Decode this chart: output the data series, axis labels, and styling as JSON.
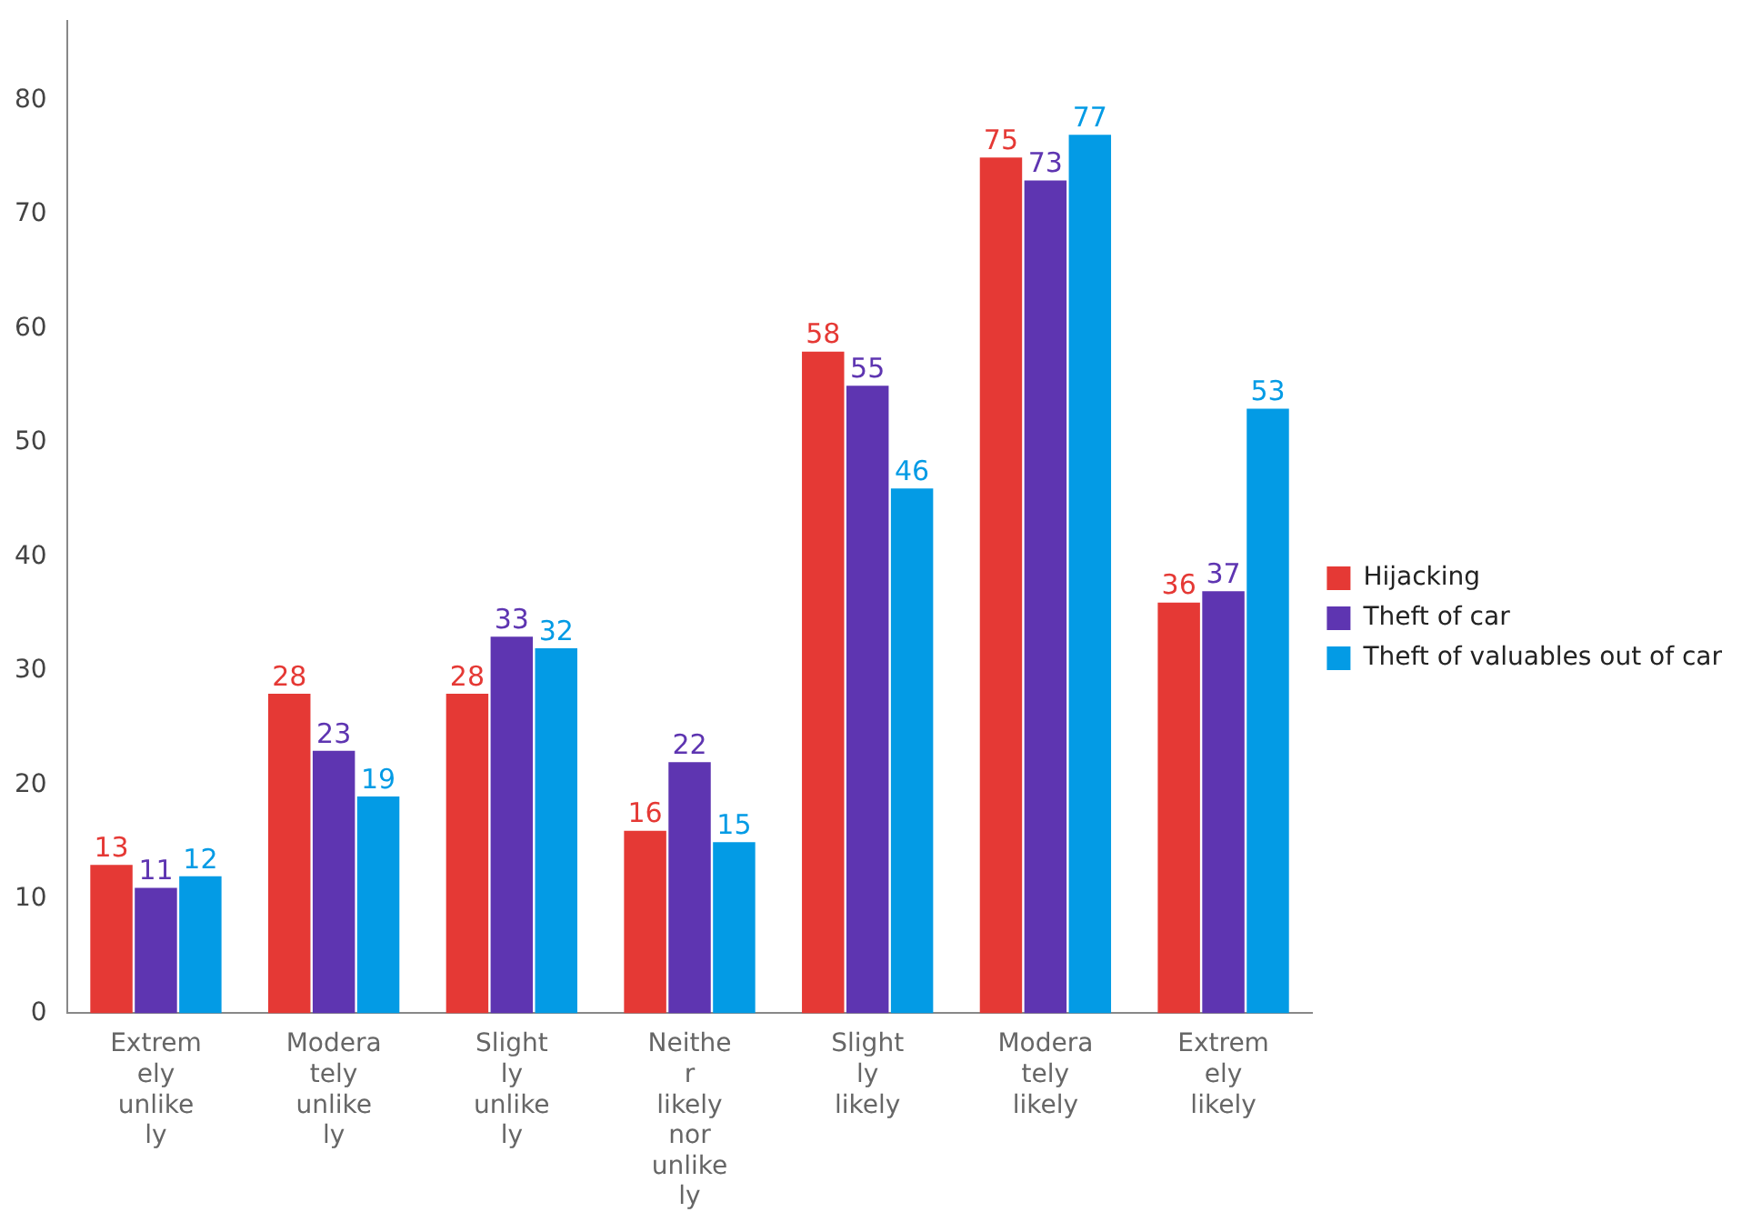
{
  "chart_data": {
    "type": "bar",
    "categories": [
      "Extremely unlikely",
      "Moderately unlikely",
      "Slightly unlikely",
      "Neither likely nor unlikely",
      "Slightly likely",
      "Moderately likely",
      "Extremely likely"
    ],
    "series": [
      {
        "name": "Hijacking",
        "color": "#e53935",
        "values": [
          13,
          28,
          28,
          16,
          58,
          75,
          36
        ]
      },
      {
        "name": "Theft of car",
        "color": "#5e35b1",
        "values": [
          11,
          23,
          33,
          22,
          55,
          73,
          37
        ]
      },
      {
        "name": "Theft of valuables out of car",
        "color": "#039be5",
        "values": [
          12,
          19,
          32,
          15,
          46,
          77,
          53
        ]
      }
    ],
    "ylim": [
      0,
      87
    ],
    "yticks": [
      0,
      10,
      20,
      30,
      40,
      50,
      60,
      70,
      80
    ],
    "grid": false,
    "legend": "right",
    "data_labels": true
  }
}
